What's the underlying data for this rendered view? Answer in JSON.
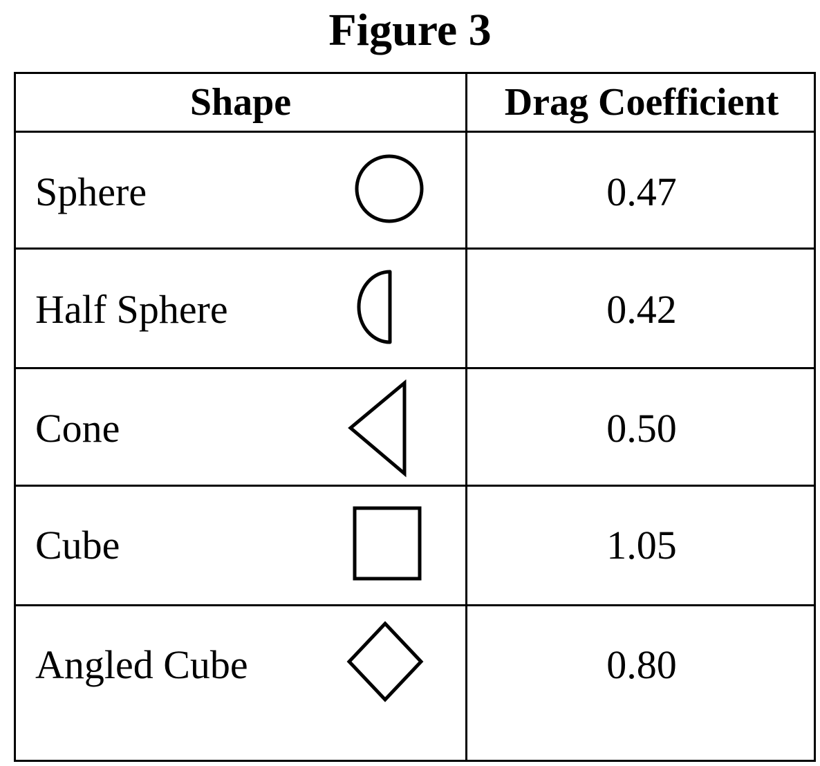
{
  "figure_title": "Figure 3",
  "table": {
    "headers": {
      "shape": "Shape",
      "drag_coefficient": "Drag Coefficient"
    },
    "rows": [
      {
        "name": "Sphere",
        "icon": "circle-icon",
        "value": "0.47"
      },
      {
        "name": "Half Sphere",
        "icon": "half-circle-icon",
        "value": "0.42"
      },
      {
        "name": "Cone",
        "icon": "triangle-icon",
        "value": "0.50"
      },
      {
        "name": "Cube",
        "icon": "square-icon",
        "value": "1.05"
      },
      {
        "name": "Angled Cube",
        "icon": "diamond-icon",
        "value": "0.80"
      }
    ]
  }
}
